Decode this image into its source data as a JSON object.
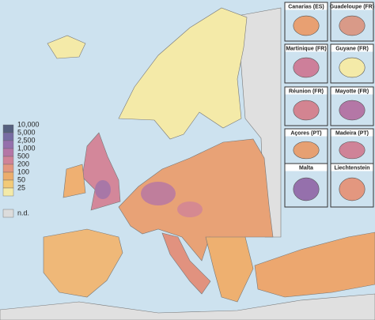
{
  "legend": {
    "items": [
      {
        "label": "10,000",
        "color": "#56607f"
      },
      {
        "label": "5,000",
        "color": "#776ca3"
      },
      {
        "label": "2,500",
        "color": "#9570ac"
      },
      {
        "label": "1,000",
        "color": "#b476a6"
      },
      {
        "label": "500",
        "color": "#cf8398"
      },
      {
        "label": "200",
        "color": "#e3977f"
      },
      {
        "label": "100",
        "color": "#ecad6c"
      },
      {
        "label": "50",
        "color": "#f2ca78"
      },
      {
        "label": "25",
        "color": "#f4eaa8"
      }
    ],
    "no_data": {
      "label": "n.d.",
      "color": "#dcdcdc"
    }
  },
  "insets": [
    {
      "label": "Canarias (ES)",
      "color": "#e8a072"
    },
    {
      "label": "Guadeloupe (FR)",
      "color": "#d99a88"
    },
    {
      "label": "Martinique (FR)",
      "color": "#cd7f9a"
    },
    {
      "label": "Guyane (FR)",
      "color": "#f4eaa8"
    },
    {
      "label": "Réunion (FR)",
      "color": "#d38491"
    },
    {
      "label": "Mayotte (FR)",
      "color": "#b477a6"
    },
    {
      "label": "Açores (PT)",
      "color": "#e6a072"
    },
    {
      "label": "Madeira (PT)",
      "color": "#cf8398"
    },
    {
      "label": "Malta",
      "color": "#9570ac"
    },
    {
      "label": "Liechtenstein",
      "color": "#e3977f"
    }
  ]
}
